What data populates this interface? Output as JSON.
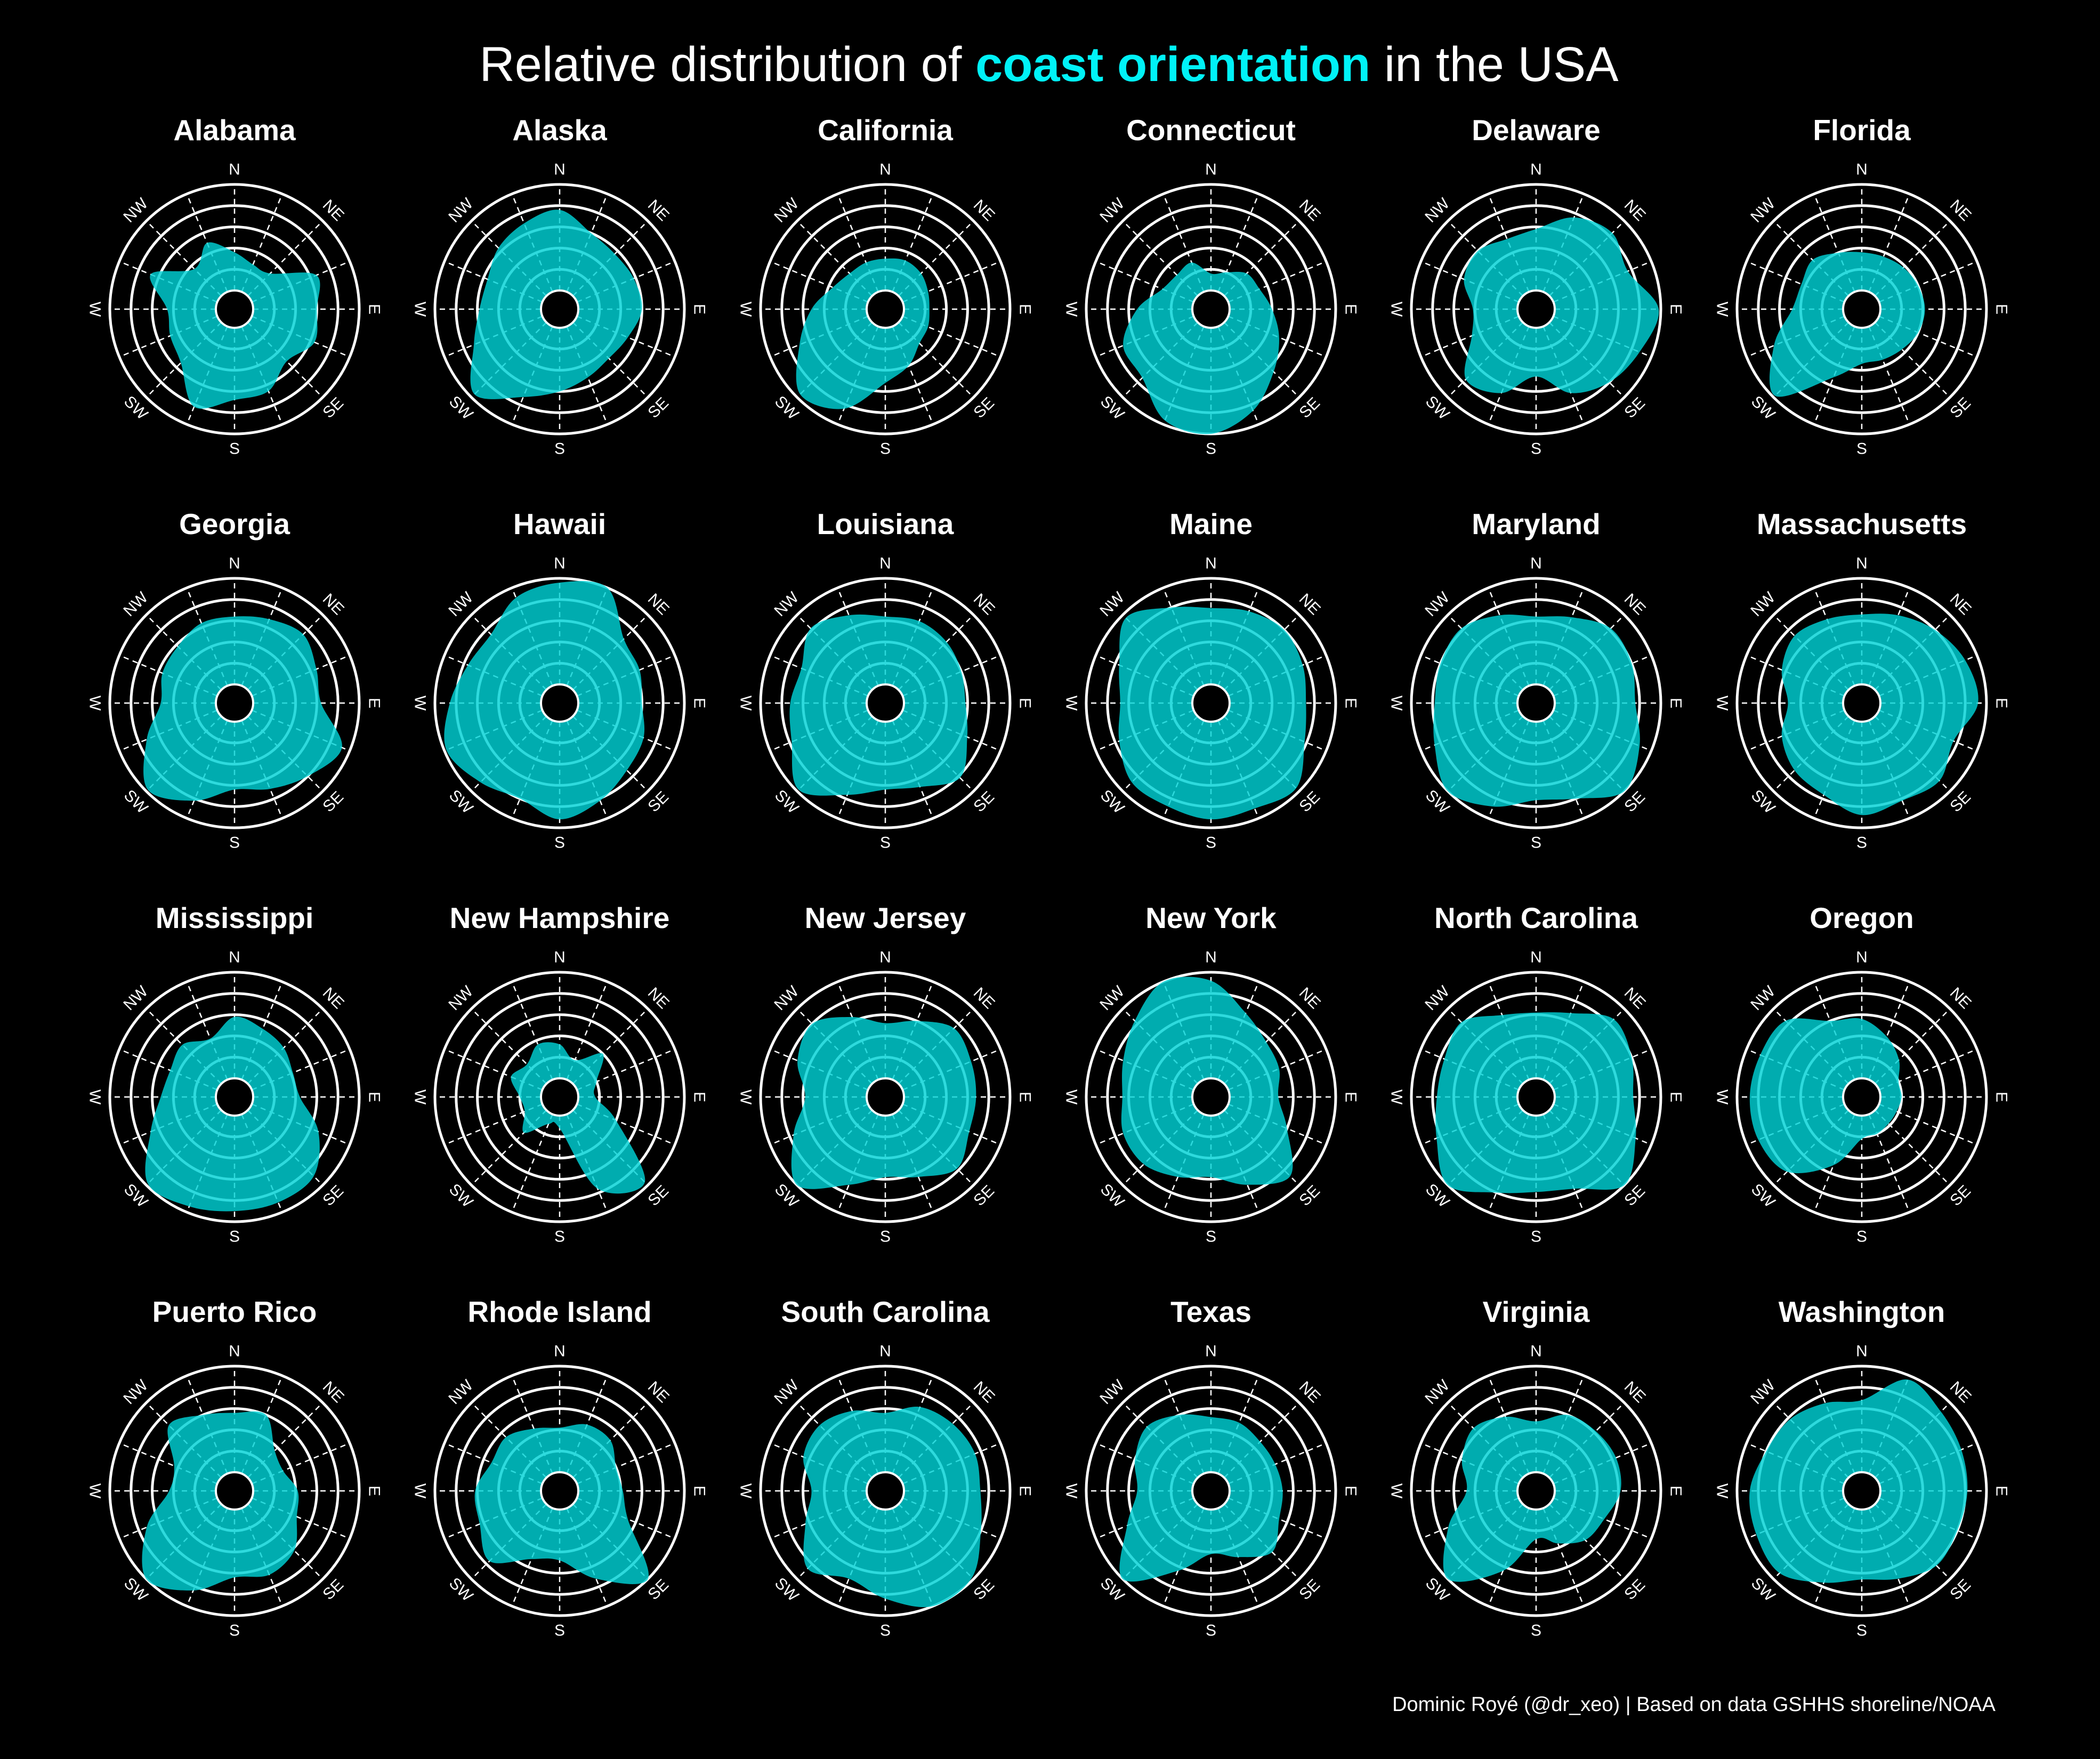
{
  "chart_data": {
    "type": "area",
    "subtype": "polar-density",
    "title": {
      "prefix": "Relative distribution of ",
      "highlight": "coast orientation",
      "suffix": " in the USA"
    },
    "footer": "Dominic Royé (@dr_xeo) | Based on data GSHHS shoreline/NOAA",
    "directions": [
      "N",
      "NNE",
      "NE",
      "ENE",
      "E",
      "ESE",
      "SE",
      "SSE",
      "S",
      "SSW",
      "SW",
      "WSW",
      "W",
      "WNW",
      "NW",
      "NNW"
    ],
    "axis_labels": [
      "N",
      "NE",
      "E",
      "SE",
      "S",
      "SW",
      "W",
      "NW"
    ],
    "rlim": [
      0,
      5
    ],
    "rings": [
      1,
      2,
      3,
      4,
      5
    ],
    "grid": true,
    "colors": {
      "fill": "#00d2d6",
      "accent": "#00f2f7",
      "grid": "#ffffff",
      "background": "#000000"
    },
    "panels": [
      {
        "state": "Alabama",
        "values": [
          1.8,
          1.4,
          1.5,
          3.3,
          3.0,
          3.2,
          2.6,
          3.3,
          3.4,
          4.1,
          2.7,
          2.4,
          2.3,
          3.4,
          1.8,
          2.5
        ]
      },
      {
        "state": "Alaska",
        "values": [
          3.8,
          3.0,
          2.8,
          2.9,
          3.0,
          2.6,
          2.4,
          2.6,
          3.0,
          3.6,
          4.8,
          3.5,
          2.9,
          2.8,
          3.2,
          3.5
        ]
      },
      {
        "state": "California",
        "values": [
          1.5,
          1.6,
          1.5,
          1.3,
          1.2,
          1.3,
          1.4,
          2.0,
          2.6,
          4.2,
          4.8,
          3.5,
          2.6,
          1.8,
          1.5,
          1.5
        ]
      },
      {
        "state": "Connecticut",
        "values": [
          0.8,
          1.0,
          1.5,
          1.6,
          2.0,
          2.6,
          3.3,
          4.3,
          5.0,
          4.8,
          3.7,
          3.6,
          2.6,
          1.6,
          1.4,
          1.5
        ]
      },
      {
        "state": "Delaware",
        "values": [
          2.9,
          3.8,
          4.2,
          3.8,
          4.9,
          4.4,
          4.0,
          3.4,
          2.3,
          3.4,
          3.8,
          2.4,
          2.1,
          2.8,
          3.0,
          2.7
        ]
      },
      {
        "state": "Florida",
        "values": [
          1.8,
          1.8,
          1.9,
          2.0,
          2.1,
          2.0,
          1.8,
          1.7,
          1.7,
          2.6,
          4.9,
          3.6,
          2.4,
          2.2,
          2.4,
          2.0
        ]
      },
      {
        "state": "Georgia",
        "values": [
          3.2,
          3.4,
          3.7,
          3.3,
          3.2,
          4.6,
          4.0,
          3.5,
          3.2,
          4.1,
          4.9,
          3.6,
          2.6,
          2.8,
          2.9,
          3.2
        ]
      },
      {
        "state": "Hawaii",
        "values": [
          4.8,
          5.0,
          3.4,
          3.2,
          3.0,
          3.4,
          3.6,
          4.1,
          4.6,
          4.0,
          4.4,
          4.9,
          4.3,
          3.8,
          3.7,
          4.5
        ]
      },
      {
        "state": "Louisiana",
        "values": [
          3.2,
          3.3,
          3.2,
          3.0,
          2.9,
          3.3,
          4.1,
          3.4,
          3.2,
          3.8,
          4.9,
          3.9,
          3.6,
          3.4,
          4.1,
          3.6
        ]
      },
      {
        "state": "Maine",
        "values": [
          3.6,
          3.8,
          4.0,
          3.8,
          3.6,
          3.9,
          4.8,
          4.5,
          4.6,
          4.4,
          4.4,
          3.8,
          3.4,
          3.8,
          4.8,
          4.0
        ]
      },
      {
        "state": "Maryland",
        "values": [
          3.2,
          3.5,
          4.1,
          4.0,
          3.8,
          4.4,
          5.0,
          4.0,
          3.7,
          4.4,
          5.0,
          4.3,
          3.9,
          4.0,
          4.1,
          3.6
        ]
      },
      {
        "state": "Massachusetts",
        "values": [
          3.3,
          3.6,
          4.0,
          4.4,
          4.6,
          3.8,
          4.3,
          4.1,
          4.4,
          3.8,
          3.6,
          3.2,
          2.6,
          3.2,
          3.6,
          3.4
        ]
      },
      {
        "state": "Mississippi",
        "values": [
          2.9,
          2.6,
          2.4,
          2.1,
          2.2,
          3.4,
          4.4,
          4.5,
          4.5,
          4.7,
          4.9,
          3.4,
          2.6,
          2.4,
          2.6,
          2.1
        ]
      },
      {
        "state": "New Hampshire",
        "values": [
          1.6,
          1.0,
          2.0,
          1.0,
          0.8,
          2.0,
          4.8,
          3.8,
          0.6,
          0.5,
          1.5,
          0.9,
          1.0,
          1.6,
          1.3,
          1.8
        ]
      },
      {
        "state": "New Jersey",
        "values": [
          2.6,
          3.0,
          3.7,
          3.5,
          3.4,
          3.4,
          3.9,
          3.2,
          2.9,
          3.6,
          5.0,
          3.8,
          2.9,
          3.6,
          4.0,
          3.2
        ]
      },
      {
        "state": "New York",
        "values": [
          4.6,
          3.4,
          2.8,
          2.6,
          2.3,
          3.0,
          4.4,
          3.6,
          2.9,
          3.2,
          3.6,
          3.6,
          3.3,
          3.6,
          4.2,
          5.0
        ]
      },
      {
        "state": "North Carolina",
        "values": [
          3.1,
          3.4,
          4.3,
          4.0,
          3.7,
          4.2,
          5.0,
          3.8,
          3.6,
          4.0,
          5.0,
          4.2,
          3.8,
          3.8,
          4.1,
          3.3
        ]
      },
      {
        "state": "Oregon",
        "values": [
          2.8,
          2.2,
          1.6,
          1.0,
          1.0,
          0.9,
          0.9,
          1.0,
          1.1,
          2.6,
          4.1,
          4.4,
          4.4,
          4.3,
          4.2,
          3.0
        ]
      },
      {
        "state": "Puerto Rico",
        "values": [
          2.8,
          3.0,
          1.8,
          1.6,
          2.1,
          2.3,
          3.1,
          3.4,
          3.2,
          4.2,
          5.0,
          3.6,
          2.2,
          2.2,
          3.5,
          3.0
        ]
      },
      {
        "state": "Rhode Island",
        "values": [
          2.1,
          2.5,
          2.5,
          2.0,
          2.1,
          2.6,
          5.0,
          3.6,
          2.4,
          2.6,
          3.8,
          3.2,
          3.1,
          2.6,
          2.7,
          2.3
        ]
      },
      {
        "state": "South Carolina",
        "values": [
          2.8,
          3.4,
          3.6,
          3.7,
          3.6,
          4.0,
          4.9,
          5.0,
          4.2,
          3.6,
          4.3,
          3.2,
          2.6,
          3.3,
          3.5,
          3.2
        ]
      },
      {
        "state": "Texas",
        "values": [
          2.6,
          2.6,
          2.4,
          2.4,
          2.5,
          2.6,
          3.2,
          2.5,
          2.1,
          3.2,
          5.0,
          3.4,
          2.6,
          3.0,
          3.4,
          3.0
        ]
      },
      {
        "state": "Virginia",
        "values": [
          2.4,
          3.0,
          3.1,
          3.2,
          3.1,
          2.6,
          2.4,
          1.8,
          1.4,
          3.2,
          5.0,
          3.6,
          2.4,
          2.9,
          3.3,
          2.9
        ]
      },
      {
        "state": "Washington",
        "values": [
          3.4,
          4.8,
          4.4,
          4.2,
          4.1,
          4.0,
          4.1,
          3.6,
          3.3,
          3.8,
          4.6,
          4.5,
          4.4,
          4.0,
          3.9,
          3.6
        ]
      }
    ]
  }
}
